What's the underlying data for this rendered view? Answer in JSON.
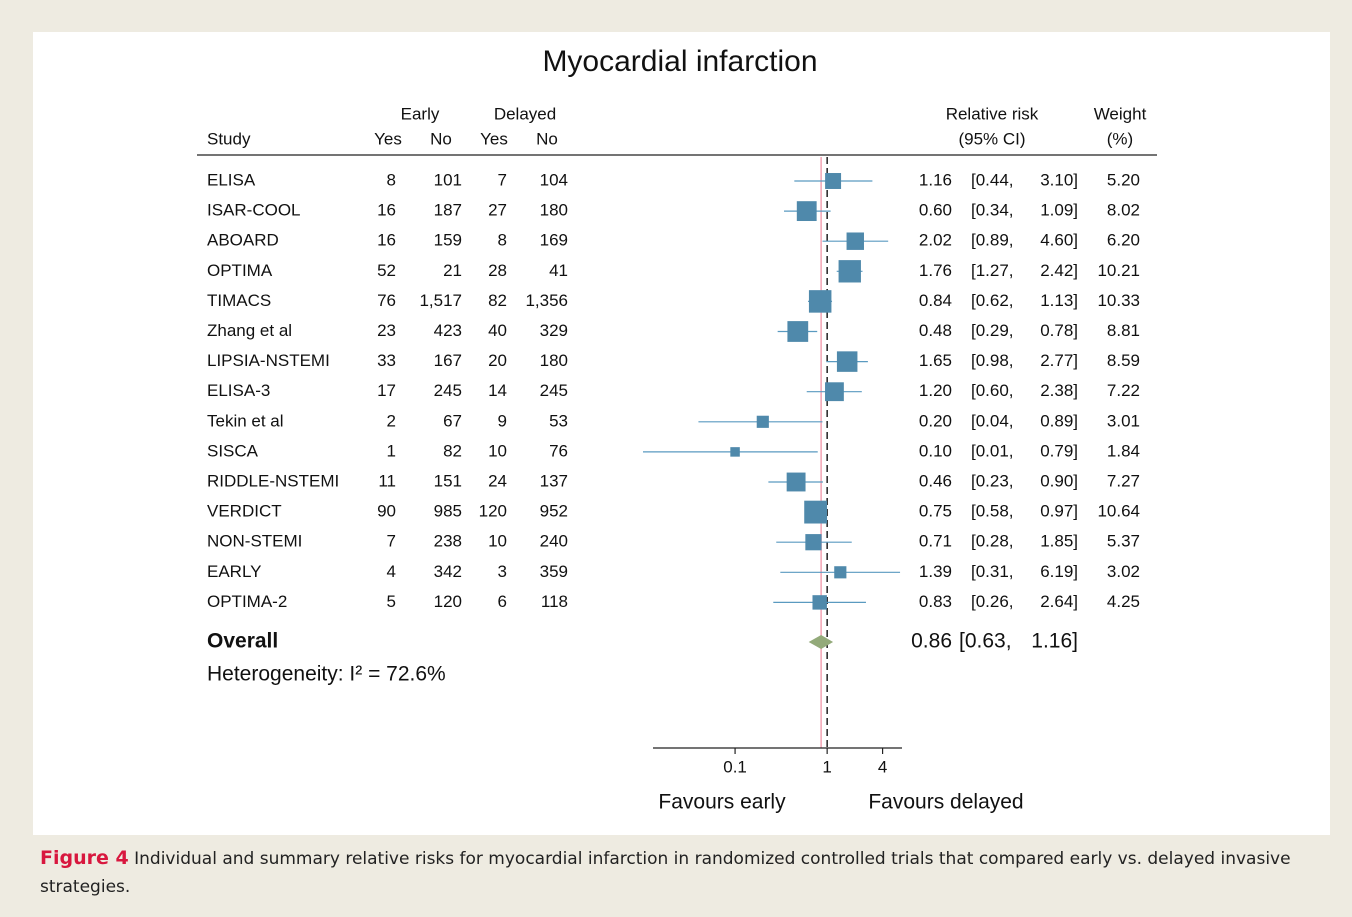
{
  "chart_data": {
    "type": "forest",
    "title": "Myocardial infarction",
    "columns": {
      "study": "Study",
      "early": "Early",
      "delayed": "Delayed",
      "yes1": "Yes",
      "no1": "No",
      "yes2": "Yes",
      "no2": "No",
      "rr1": "Relative risk",
      "rr2": "(95% CI)",
      "weight1": "Weight",
      "weight2": "(%)"
    },
    "studies": [
      "ELISA",
      "ISAR-COOL",
      "ABOARD",
      "OPTIMA",
      "TIMACS",
      "Zhang et al",
      "LIPSIA-NSTEMI",
      "ELISA-3",
      "Tekin et al",
      "SISCA",
      "RIDDLE-NSTEMI",
      "VERDICT",
      "NON-STEMI",
      "EARLY",
      "OPTIMA-2"
    ],
    "early_yes": [
      8,
      16,
      16,
      52,
      76,
      23,
      33,
      17,
      2,
      1,
      11,
      90,
      7,
      4,
      5
    ],
    "early_no": [
      101,
      187,
      159,
      21,
      {
        "value": 1517,
        "label": "1,517"
      },
      423,
      167,
      245,
      67,
      82,
      151,
      985,
      238,
      342,
      120
    ],
    "delayed_yes": [
      7,
      27,
      8,
      28,
      82,
      40,
      20,
      14,
      9,
      10,
      24,
      120,
      10,
      3,
      6
    ],
    "delayed_no": [
      104,
      180,
      169,
      41,
      {
        "value": 1356,
        "label": "1,356"
      },
      329,
      180,
      245,
      53,
      76,
      137,
      952,
      240,
      359,
      118
    ],
    "rr": [
      1.16,
      {
        "value": 0.6,
        "label": "0.60"
      },
      2.02,
      1.76,
      0.84,
      0.48,
      1.65,
      {
        "value": 1.2,
        "label": "1.20"
      },
      {
        "value": 0.2,
        "label": "0.20"
      },
      {
        "value": 0.1,
        "label": "0.10"
      },
      0.46,
      0.75,
      0.71,
      1.39,
      0.83
    ],
    "ci_low": [
      {
        "value": 0.44,
        "label": "[0.44,"
      },
      {
        "value": 0.34,
        "label": "[0.34,"
      },
      {
        "value": 0.89,
        "label": "[0.89,"
      },
      {
        "value": 1.27,
        "label": "[1.27,"
      },
      {
        "value": 0.62,
        "label": "[0.62,"
      },
      {
        "value": 0.29,
        "label": "[0.29,"
      },
      {
        "value": 0.98,
        "label": "[0.98,"
      },
      {
        "value": 0.6,
        "label": "[0.60,"
      },
      {
        "value": 0.04,
        "label": "[0.04,"
      },
      {
        "value": 0.01,
        "label": "[0.01,"
      },
      {
        "value": 0.23,
        "label": "[0.23,"
      },
      {
        "value": 0.58,
        "label": "[0.58,"
      },
      {
        "value": 0.28,
        "label": "[0.28,"
      },
      {
        "value": 0.31,
        "label": "[0.31,"
      },
      {
        "value": 0.26,
        "label": "[0.26,"
      }
    ],
    "ci_high": [
      {
        "value": 3.1,
        "label": "3.10]"
      },
      {
        "value": 1.09,
        "label": "1.09]"
      },
      {
        "value": 4.6,
        "label": "4.60]"
      },
      {
        "value": 2.42,
        "label": "2.42]"
      },
      {
        "value": 1.13,
        "label": "1.13]"
      },
      {
        "value": 0.78,
        "label": "0.78]"
      },
      {
        "value": 2.77,
        "label": "2.77]"
      },
      {
        "value": 2.38,
        "label": "2.38]"
      },
      {
        "value": 0.89,
        "label": "0.89]"
      },
      {
        "value": 0.79,
        "label": "0.79]"
      },
      {
        "value": 0.9,
        "label": "0.90]"
      },
      {
        "value": 0.97,
        "label": "0.97]"
      },
      {
        "value": 1.85,
        "label": "1.85]"
      },
      {
        "value": 6.19,
        "label": "6.19]"
      },
      {
        "value": 2.64,
        "label": "2.64]"
      }
    ],
    "weight": [
      {
        "value": 5.2,
        "label": "5.20"
      },
      8.02,
      {
        "value": 6.2,
        "label": "6.20"
      },
      10.21,
      10.33,
      8.81,
      8.59,
      7.22,
      3.01,
      1.84,
      7.27,
      10.64,
      5.37,
      3.02,
      4.25
    ],
    "overall": {
      "name": "Overall",
      "rr": 0.86,
      "ci_low": {
        "value": 0.63,
        "label": "[0.63,"
      },
      "ci_high": {
        "value": 1.16,
        "label": "1.16]"
      }
    },
    "heterogeneity": "Heterogeneity: I² = 72.6%",
    "log_x": true,
    "xlim": [
      0.01,
      6.5
    ],
    "xticks": [
      0.1,
      1,
      4
    ],
    "null_line": 1,
    "x_labels": [
      "Favours early",
      "Favours delayed"
    ],
    "square_color": "#4f89ab",
    "ci_color": "#5a9ac0",
    "diamond_color": "#93aa7a",
    "overall_line_color": "#f2a3b3"
  },
  "caption": {
    "label": "Figure 4",
    "text": "Individual and summary relative risks for myocardial infarction in randomized controlled trials that compared early vs. delayed invasive strategies."
  }
}
